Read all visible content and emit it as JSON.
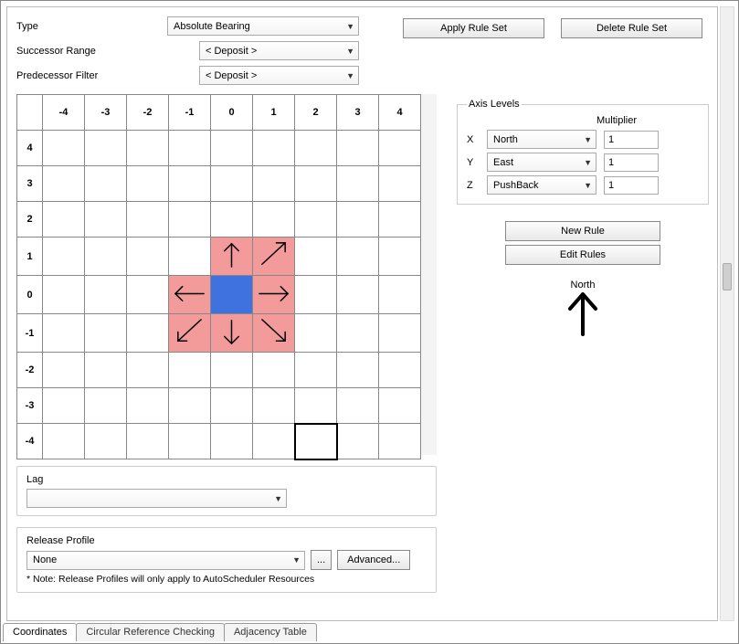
{
  "buttons": {
    "apply_rule_set": "Apply Rule Set",
    "delete_rule_set": "Delete Rule Set",
    "new_rule": "New Rule",
    "edit_rules": "Edit Rules",
    "advanced": "Advanced...",
    "ellipsis": "..."
  },
  "fields": {
    "type_label": "Type",
    "type_value": "Absolute Bearing",
    "successor_label": "Successor Range",
    "successor_value": "< Deposit >",
    "predecessor_label": "Predecessor Filter",
    "predecessor_value": "< Deposit >"
  },
  "axis": {
    "legend": "Axis Levels",
    "multiplier_label": "Multiplier",
    "x": {
      "label": "X",
      "value": "North",
      "mult": "1"
    },
    "y": {
      "label": "Y",
      "value": "East",
      "mult": "1"
    },
    "z": {
      "label": "Z",
      "value": "PushBack",
      "mult": "1"
    }
  },
  "compass": {
    "label": "North"
  },
  "lag": {
    "title": "Lag",
    "value": ""
  },
  "release": {
    "title": "Release Profile",
    "value": "None",
    "note": "* Note: Release Profiles will only apply to AutoScheduler Resources"
  },
  "tabs": {
    "coordinates": "Coordinates",
    "circular": "Circular Reference Checking",
    "adjacency": "Adjacency Table"
  },
  "grid": {
    "cols": [
      "-4",
      "-3",
      "-2",
      "-1",
      "0",
      "1",
      "2",
      "3",
      "4"
    ],
    "rows": [
      "4",
      "3",
      "2",
      "1",
      "0",
      "-1",
      "-2",
      "-3",
      "-4"
    ],
    "cells": [
      {
        "row": "1",
        "col": "0",
        "type": "pink",
        "arrow": "N"
      },
      {
        "row": "1",
        "col": "1",
        "type": "pink",
        "arrow": "NE"
      },
      {
        "row": "0",
        "col": "-1",
        "type": "pink",
        "arrow": "W"
      },
      {
        "row": "0",
        "col": "0",
        "type": "blue"
      },
      {
        "row": "0",
        "col": "1",
        "type": "pink",
        "arrow": "E"
      },
      {
        "row": "-1",
        "col": "-1",
        "type": "pink",
        "arrow": "SW"
      },
      {
        "row": "-1",
        "col": "0",
        "type": "pink",
        "arrow": "S"
      },
      {
        "row": "-1",
        "col": "1",
        "type": "pink",
        "arrow": "SE"
      }
    ],
    "cursor": {
      "row": "-4",
      "col": "2"
    }
  }
}
